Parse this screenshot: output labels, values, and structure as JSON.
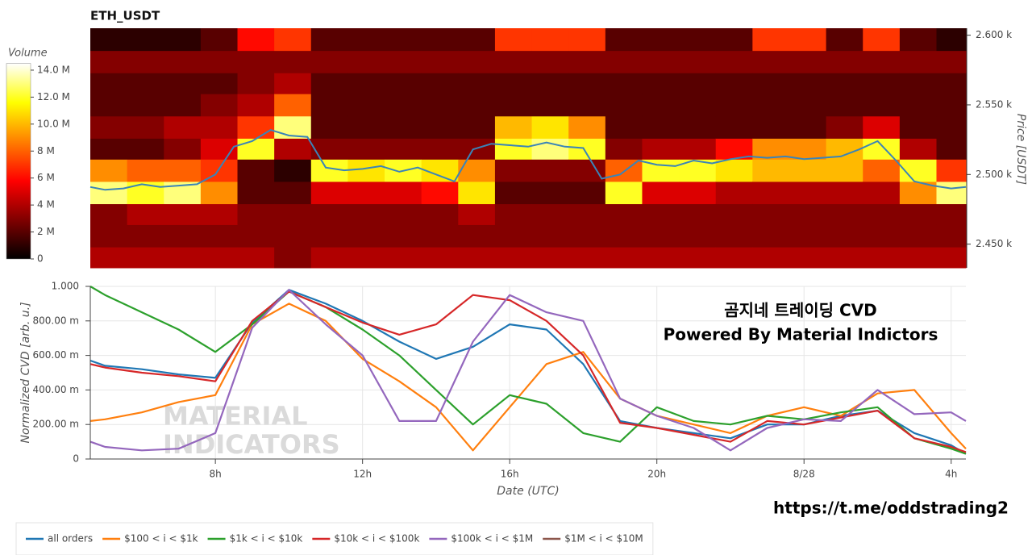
{
  "chart_data": [
    {
      "type": "heatmap",
      "title": "ETH_USDT",
      "ylabel": "Price [USDT]",
      "clabel": "Volume",
      "xlim": [
        4.6,
        28.4
      ],
      "ylim": [
        2433,
        2605
      ],
      "x_bins": [
        4.6,
        5.6,
        6.6,
        7.6,
        8.6,
        9.6,
        10.6,
        11.6,
        12.6,
        13.6,
        14.6,
        15.6,
        16.6,
        17.6,
        18.6,
        19.6,
        20.6,
        21.6,
        22.6,
        23.6,
        24.6,
        25.6,
        26.6,
        27.6,
        28.4
      ],
      "y_bins": [
        2433,
        2448,
        2464,
        2479,
        2495,
        2511,
        2526,
        2542,
        2558,
        2573,
        2589,
        2605
      ],
      "z": [
        [
          4,
          3,
          3,
          13,
          9,
          2,
          3,
          2,
          2,
          3,
          1
        ],
        [
          4,
          3,
          4,
          12,
          8,
          2,
          3,
          2,
          2,
          3,
          1
        ],
        [
          4,
          3,
          4,
          13,
          8,
          3,
          4,
          2,
          2,
          3,
          1
        ],
        [
          4,
          3,
          4,
          9,
          7,
          5,
          4,
          3,
          2,
          3,
          2
        ],
        [
          4,
          3,
          3,
          2,
          2,
          12,
          7,
          4,
          3,
          3,
          6
        ],
        [
          3,
          3,
          3,
          2,
          1,
          4,
          13,
          8,
          4,
          3,
          7
        ],
        [
          4,
          3,
          3,
          5,
          12,
          3,
          2,
          2,
          2,
          3,
          2
        ],
        [
          4,
          3,
          3,
          5,
          11,
          3,
          2,
          2,
          2,
          3,
          2
        ],
        [
          4,
          3,
          3,
          5,
          12,
          3,
          2,
          2,
          2,
          3,
          2
        ],
        [
          4,
          3,
          3,
          6,
          11,
          3,
          2,
          2,
          2,
          3,
          2
        ],
        [
          4,
          3,
          4,
          11,
          9,
          3,
          2,
          2,
          2,
          3,
          2
        ],
        [
          4,
          3,
          3,
          2,
          3,
          12,
          10,
          2,
          2,
          3,
          7
        ],
        [
          4,
          3,
          3,
          2,
          3,
          13,
          11,
          2,
          2,
          3,
          7
        ],
        [
          4,
          3,
          3,
          2,
          3,
          12,
          9,
          2,
          2,
          3,
          7
        ],
        [
          4,
          3,
          3,
          12,
          8,
          3,
          2,
          2,
          2,
          3,
          2
        ],
        [
          4,
          3,
          3,
          5,
          12,
          4,
          2,
          2,
          2,
          3,
          2
        ],
        [
          4,
          3,
          3,
          5,
          12,
          4,
          2,
          2,
          2,
          3,
          2
        ],
        [
          4,
          3,
          3,
          4,
          11,
          6,
          2,
          2,
          2,
          3,
          2
        ],
        [
          4,
          3,
          3,
          4,
          10,
          9,
          2,
          2,
          2,
          3,
          7
        ],
        [
          4,
          3,
          3,
          4,
          10,
          9,
          2,
          2,
          2,
          3,
          7
        ],
        [
          4,
          3,
          3,
          4,
          10,
          10,
          3,
          2,
          2,
          3,
          2
        ],
        [
          4,
          3,
          3,
          4,
          8,
          12,
          5,
          2,
          2,
          3,
          7
        ],
        [
          4,
          3,
          3,
          9,
          12,
          4,
          2,
          2,
          2,
          3,
          2
        ],
        [
          4,
          3,
          3,
          13,
          7,
          2,
          2,
          2,
          2,
          3,
          1
        ]
      ],
      "clim": [
        0,
        14.5
      ],
      "cticks": [
        0,
        {
          "value": 2,
          "label": "2 M"
        },
        {
          "value": 4,
          "label": "4 M"
        },
        {
          "value": 6,
          "label": "6 M"
        },
        {
          "value": 8,
          "label": "8 M"
        },
        {
          "value": 10,
          "label": "10.0 M"
        },
        {
          "value": 12,
          "label": "12.0 M"
        },
        {
          "value": 14,
          "label": "14.0 M"
        }
      ],
      "yticks": [
        {
          "value": 2450,
          "label": "2.450 k"
        },
        {
          "value": 2500,
          "label": "2.500 k"
        },
        {
          "value": 2550,
          "label": "2.550 k"
        },
        {
          "value": 2600,
          "label": "2.600 k"
        }
      ],
      "price": {
        "color": "#3a84b8",
        "x": [
          4.6,
          5.0,
          5.5,
          6.0,
          6.5,
          7.0,
          7.5,
          8.0,
          8.5,
          9.0,
          9.5,
          10.0,
          10.5,
          11.0,
          11.5,
          12.0,
          12.5,
          13.0,
          13.5,
          14.0,
          14.5,
          15.0,
          15.5,
          16.0,
          16.5,
          17.0,
          17.5,
          18.0,
          18.5,
          19.0,
          19.5,
          20.0,
          20.5,
          21.0,
          21.5,
          22.0,
          22.5,
          23.0,
          23.5,
          24.0,
          24.5,
          25.0,
          25.5,
          26.0,
          26.5,
          27.0,
          27.5,
          28.0,
          28.4
        ],
        "values": [
          2491,
          2489,
          2490,
          2493,
          2491,
          2492,
          2493,
          2500,
          2520,
          2524,
          2532,
          2528,
          2527,
          2505,
          2503,
          2504,
          2506,
          2502,
          2505,
          2500,
          2495,
          2518,
          2522,
          2521,
          2520,
          2523,
          2520,
          2519,
          2497,
          2500,
          2510,
          2507,
          2506,
          2510,
          2508,
          2511,
          2513,
          2512,
          2513,
          2511,
          2512,
          2513,
          2518,
          2524,
          2510,
          2495,
          2492,
          2490,
          2491
        ]
      }
    },
    {
      "type": "line",
      "xlabel": "Date (UTC)",
      "ylabel": "Normalized CVD [arb. u.]",
      "xlim": [
        4.6,
        28.4
      ],
      "ylim": [
        0,
        1
      ],
      "grid": true,
      "legend": "bottom-left",
      "xticks": [
        {
          "value": 8,
          "label": "8h"
        },
        {
          "value": 12,
          "label": "12h"
        },
        {
          "value": 16,
          "label": "16h"
        },
        {
          "value": 20,
          "label": "20h"
        },
        {
          "value": 24,
          "label": "8/28"
        },
        {
          "value": 28,
          "label": "4h"
        }
      ],
      "yticks": [
        0,
        {
          "value": 0.2,
          "label": "200.00 m"
        },
        {
          "value": 0.4,
          "label": "400.00 m"
        },
        {
          "value": 0.6,
          "label": "600.00 m"
        },
        {
          "value": 0.8,
          "label": "800.00 m"
        },
        {
          "value": 1,
          "label": "1.000"
        }
      ],
      "annotations": [
        "곰지네 트레이딩 CVD",
        "Powered By Material Indictors",
        "https://t.me/oddstrading2"
      ],
      "watermark": [
        "MATERIAL",
        "INDICATORS"
      ],
      "x": [
        4.6,
        5,
        6,
        7,
        8,
        9,
        10,
        11,
        12,
        13,
        14,
        15,
        16,
        17,
        18,
        19,
        20,
        21,
        22,
        23,
        24,
        25,
        26,
        27,
        28,
        28.4
      ],
      "series": [
        {
          "name": "all orders",
          "color": "#1f77b4",
          "values": [
            0.57,
            0.54,
            0.52,
            0.49,
            0.47,
            0.79,
            0.98,
            0.9,
            0.8,
            0.68,
            0.58,
            0.65,
            0.78,
            0.75,
            0.55,
            0.22,
            0.18,
            0.15,
            0.12,
            0.2,
            0.2,
            0.25,
            0.28,
            0.15,
            0.08,
            0.03
          ]
        },
        {
          "name": "$100 < i < $1k",
          "color": "#ff7f0e",
          "values": [
            0.22,
            0.23,
            0.27,
            0.33,
            0.37,
            0.78,
            0.9,
            0.8,
            0.58,
            0.45,
            0.3,
            0.05,
            0.3,
            0.55,
            0.62,
            0.35,
            0.25,
            0.2,
            0.15,
            0.25,
            0.3,
            0.25,
            0.38,
            0.4,
            0.15,
            0.06
          ]
        },
        {
          "name": "$1k < i < $10k",
          "color": "#2ca02c",
          "values": [
            1.0,
            0.95,
            0.85,
            0.75,
            0.62,
            0.78,
            0.97,
            0.88,
            0.75,
            0.6,
            0.4,
            0.2,
            0.37,
            0.32,
            0.15,
            0.1,
            0.3,
            0.22,
            0.2,
            0.25,
            0.23,
            0.27,
            0.3,
            0.12,
            0.06,
            0.03
          ]
        },
        {
          "name": "$10k < i < $100k",
          "color": "#d62728",
          "values": [
            0.55,
            0.53,
            0.5,
            0.48,
            0.45,
            0.8,
            0.97,
            0.88,
            0.79,
            0.72,
            0.78,
            0.95,
            0.92,
            0.8,
            0.6,
            0.21,
            0.18,
            0.14,
            0.1,
            0.22,
            0.2,
            0.24,
            0.28,
            0.12,
            0.07,
            0.04
          ]
        },
        {
          "name": "$100k < i < $1M",
          "color": "#9467bd",
          "values": [
            0.1,
            0.07,
            0.05,
            0.06,
            0.15,
            0.76,
            0.98,
            0.78,
            0.6,
            0.22,
            0.22,
            0.68,
            0.95,
            0.85,
            0.8,
            0.35,
            0.25,
            0.18,
            0.05,
            0.18,
            0.23,
            0.22,
            0.4,
            0.26,
            0.27,
            0.22
          ]
        },
        {
          "name": "$1M < i < $10M",
          "color": "#8c564b",
          "values": [
            null,
            null,
            null,
            null,
            null,
            null,
            null,
            null,
            null,
            null,
            null,
            null,
            null,
            null,
            null,
            null,
            null,
            null,
            null,
            null,
            null,
            null,
            null,
            null,
            null,
            null
          ]
        }
      ]
    }
  ]
}
